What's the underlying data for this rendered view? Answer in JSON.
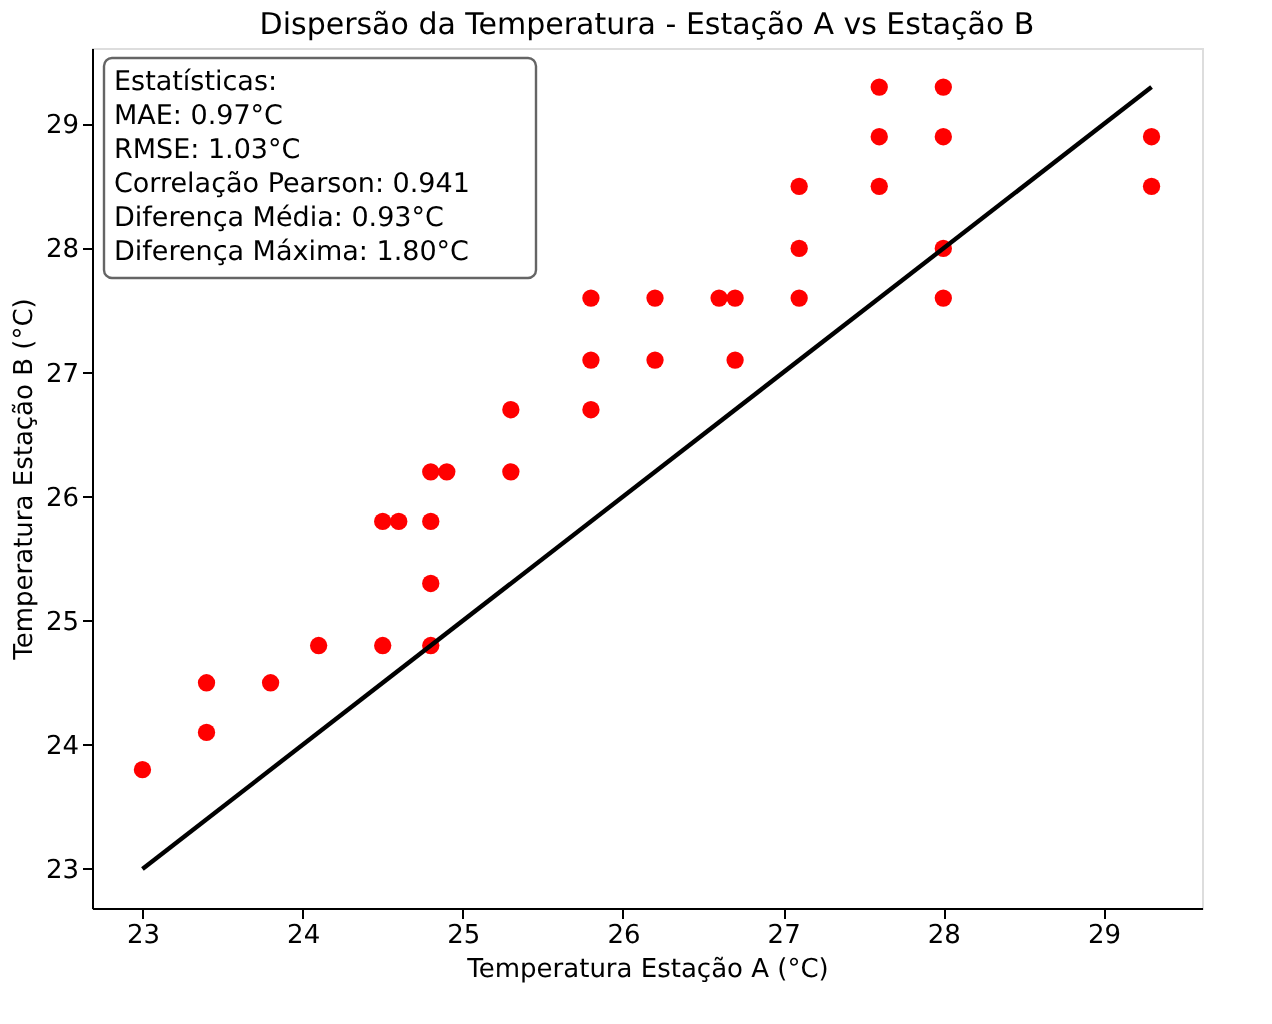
{
  "chart_data": {
    "type": "scatter",
    "title": "Dispersão da Temperatura - Estação A vs Estação B",
    "xlabel": "Temperatura Estação A (°C)",
    "ylabel": "Temperatura Estação B (°C)",
    "xlim": [
      22.685,
      29.615
    ],
    "ylim": [
      22.685,
      29.615
    ],
    "xticks": [
      23,
      24,
      25,
      26,
      27,
      28,
      29
    ],
    "yticks": [
      23,
      24,
      25,
      26,
      27,
      28,
      29
    ],
    "grid": false,
    "annotations": [
      "Estatísticas:",
      "MAE: 0.97°C",
      "RMSE: 1.03°C",
      "Correlação Pearson: 0.941",
      "Diferença Média: 0.93°C",
      "Diferença Máxima: 1.80°C"
    ],
    "series": [
      {
        "marker": "circle",
        "color": "#ff0000",
        "x": [
          23.0,
          23.4,
          23.4,
          23.8,
          24.1,
          24.5,
          24.5,
          24.6,
          24.8,
          24.8,
          24.8,
          24.8,
          24.9,
          25.3,
          25.3,
          25.8,
          25.8,
          25.8,
          26.2,
          26.2,
          26.6,
          26.7,
          26.7,
          27.1,
          27.1,
          27.1,
          27.6,
          27.6,
          27.6,
          28.0,
          28.0,
          28.0,
          28.0,
          29.3,
          29.3
        ],
        "values": [
          23.8,
          24.5,
          24.1,
          24.5,
          24.8,
          24.8,
          25.8,
          25.8,
          25.8,
          25.3,
          24.8,
          26.2,
          26.2,
          26.7,
          26.2,
          27.6,
          27.1,
          26.7,
          27.6,
          27.1,
          27.6,
          27.6,
          27.1,
          28.5,
          28.0,
          27.6,
          29.3,
          28.9,
          28.5,
          29.3,
          28.9,
          28.0,
          27.6,
          28.9,
          28.5
        ]
      },
      {
        "type": "line",
        "color": "#000000",
        "x": [
          23.0,
          29.3
        ],
        "values": [
          23.0,
          29.3
        ]
      }
    ]
  }
}
